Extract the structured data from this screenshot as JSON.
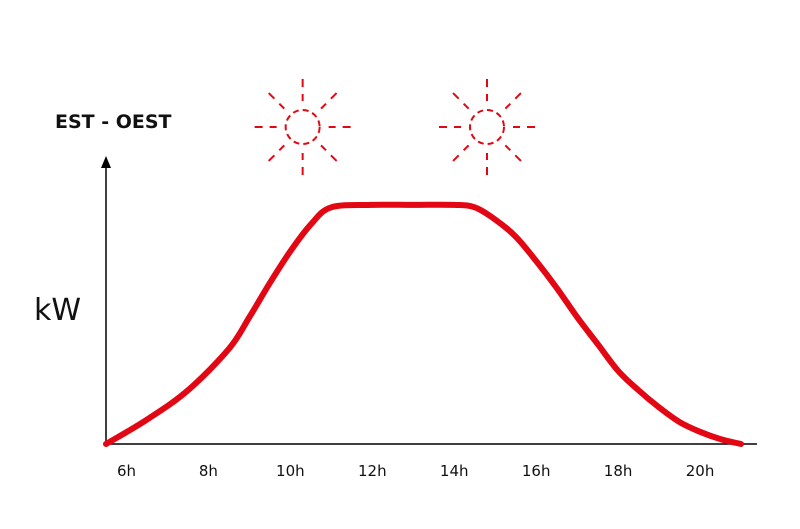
{
  "chart_data": {
    "type": "area",
    "title": "EST - OEST",
    "ylabel": "kW",
    "xlabel": "",
    "x_ticks": [
      "6h",
      "8h",
      "10h",
      "12h",
      "14h",
      "16h",
      "18h",
      "20h"
    ],
    "xlim": [
      5.5,
      21.0
    ],
    "ylim": [
      0,
      1.0
    ],
    "grid": false,
    "series": [
      {
        "x": [
          5.5,
          6.5,
          7.5,
          8.5,
          9.0,
          9.5,
          10.0,
          10.5,
          11.0,
          12.0,
          13.0,
          14.0,
          14.5,
          15.0,
          15.5,
          16.0,
          16.5,
          17.0,
          17.5,
          18.0,
          18.5,
          19.0,
          19.5,
          20.0,
          20.5,
          21.0
        ],
        "y": [
          0.0,
          0.1,
          0.22,
          0.39,
          0.52,
          0.66,
          0.79,
          0.9,
          0.97,
          0.98,
          0.98,
          0.98,
          0.97,
          0.92,
          0.85,
          0.75,
          0.64,
          0.52,
          0.41,
          0.3,
          0.22,
          0.15,
          0.09,
          0.05,
          0.02,
          0.0
        ]
      }
    ],
    "annotations": [
      {
        "type": "sun-icon",
        "x": 10.3
      },
      {
        "type": "sun-icon",
        "x": 14.8
      }
    ]
  },
  "colors": {
    "curve": "#e30613",
    "axis": "#000000",
    "text": "#111111"
  },
  "icons": [
    "sun-icon",
    "y-axis-arrow-icon"
  ]
}
